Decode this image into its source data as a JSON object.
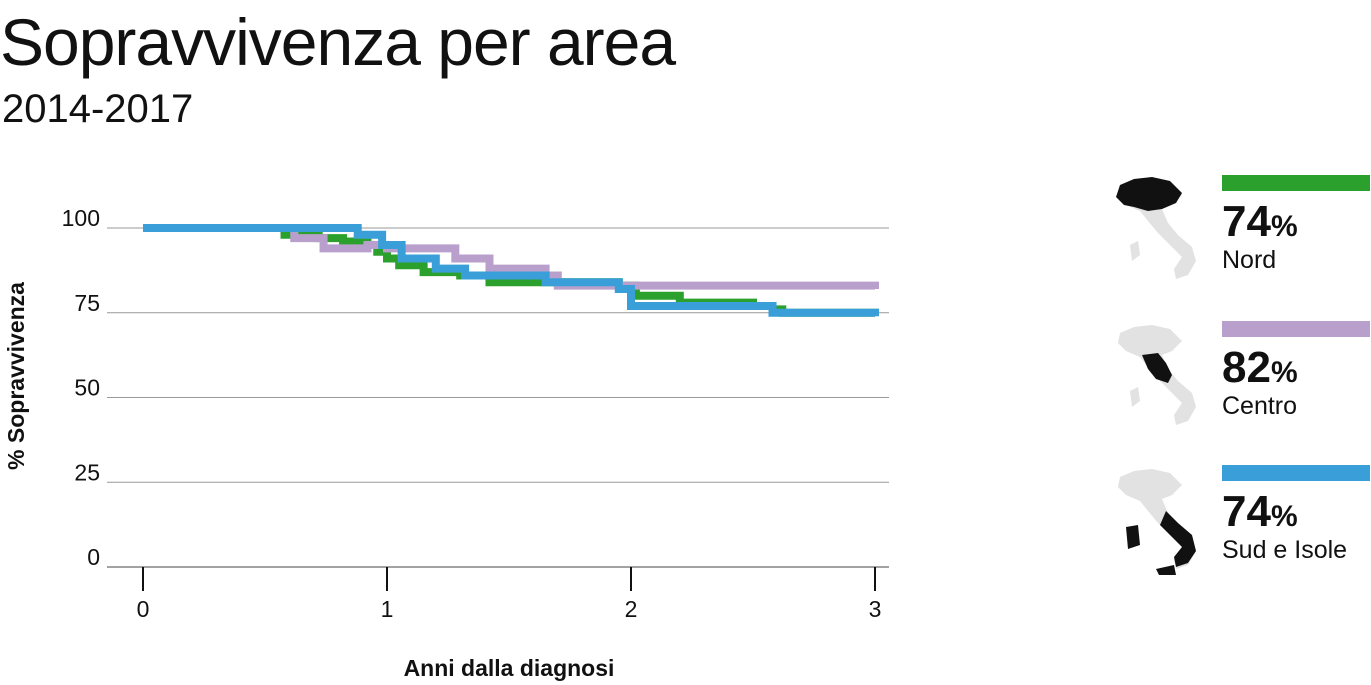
{
  "title": "Sopravvivenza per area",
  "subtitle": "2014-2017",
  "chart_data": {
    "type": "line",
    "step": true,
    "title": "Sopravvivenza per area",
    "subtitle": "2014-2017",
    "xlabel": "Anni dalla diagnosi",
    "ylabel": "% Sopravvivenza",
    "xlim": [
      0,
      3
    ],
    "ylim": [
      0,
      100
    ],
    "x_ticks": [
      0,
      1,
      2,
      3
    ],
    "y_ticks": [
      0,
      25,
      50,
      75,
      100
    ],
    "grid": "horizontal",
    "legend": "right",
    "series": [
      {
        "name": "Nord",
        "color": "#2ca02c",
        "x": [
          0,
          0.58,
          0.72,
          0.82,
          0.92,
          0.96,
          1.0,
          1.05,
          1.15,
          1.3,
          1.42,
          1.7,
          1.95,
          2.02,
          2.2,
          2.5,
          2.58,
          2.62,
          3.0
        ],
        "y": [
          100,
          98,
          97,
          96,
          95,
          93,
          91,
          89,
          87,
          86,
          84,
          84,
          83,
          80,
          78,
          77,
          76,
          75,
          74
        ]
      },
      {
        "name": "Centro",
        "color": "#b9a0cc",
        "x": [
          0,
          0.62,
          0.74,
          0.92,
          1.0,
          1.28,
          1.42,
          1.65,
          1.7,
          2.0,
          3.0
        ],
        "y": [
          100,
          97,
          94,
          95,
          94,
          91,
          88,
          86,
          83,
          83,
          82
        ]
      },
      {
        "name": "Sud e Isole",
        "color": "#3a9fd8",
        "x": [
          0,
          0.88,
          0.98,
          1.06,
          1.2,
          1.32,
          1.65,
          1.95,
          2.0,
          2.58,
          3.0
        ],
        "y": [
          100,
          98,
          95,
          91,
          88,
          86,
          84,
          82,
          77,
          75,
          74
        ]
      }
    ]
  },
  "legend": [
    {
      "value": "74",
      "unit": "%",
      "name": "Nord",
      "color": "#2ca02c",
      "map": "italy-north-map-icon"
    },
    {
      "value": "82",
      "unit": "%",
      "name": "Centro",
      "color": "#b9a0cc",
      "map": "italy-center-map-icon"
    },
    {
      "value": "74",
      "unit": "%",
      "name": "Sud e Isole",
      "color": "#3a9fd8",
      "map": "italy-south-map-icon"
    }
  ]
}
